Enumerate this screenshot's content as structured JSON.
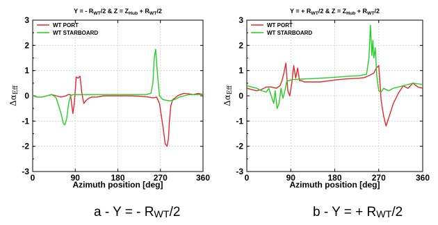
{
  "chart_data": [
    {
      "type": "line",
      "title_parts": [
        "Y = - R",
        "WT",
        "/2 & Z = Z",
        "Hub",
        " + R",
        "WT",
        "/2"
      ],
      "caption_parts": [
        "a - Y = - R",
        "WT",
        "/2"
      ],
      "xlabel": "Azimuth position [deg]",
      "ylabel_parts": [
        "Δα",
        "Eff"
      ],
      "xlim": [
        0,
        360
      ],
      "ylim": [
        -3,
        3
      ],
      "xticks": [
        0,
        90,
        180,
        270,
        360
      ],
      "yticks": [
        -3,
        -2,
        -1,
        0,
        1,
        2,
        3
      ],
      "grid": true,
      "legend_position": "top-left",
      "series": [
        {
          "name": "WT PORT",
          "color": "#e8262a",
          "x": [
            0,
            10,
            20,
            30,
            40,
            50,
            60,
            70,
            75,
            80,
            85,
            88,
            92,
            96,
            100,
            104,
            108,
            112,
            118,
            125,
            135,
            150,
            170,
            190,
            210,
            230,
            245,
            255,
            262,
            268,
            272,
            276,
            280,
            284,
            287,
            289,
            292,
            296,
            300,
            306,
            312,
            320,
            330,
            340,
            350,
            360
          ],
          "y": [
            0.02,
            -0.05,
            -0.05,
            0.0,
            0.05,
            0.0,
            -0.05,
            0.0,
            0.05,
            0.05,
            -0.7,
            -0.3,
            0.75,
            0.7,
            0.78,
            0.1,
            -0.3,
            -0.2,
            -0.1,
            -0.05,
            -0.05,
            0.0,
            0.0,
            0.0,
            0.0,
            -0.02,
            -0.05,
            -0.08,
            -0.05,
            -0.3,
            -0.8,
            -1.3,
            -1.9,
            -2.0,
            -1.7,
            -1.0,
            -0.4,
            -0.15,
            -0.1,
            0.0,
            0.05,
            0.1,
            0.08,
            0.05,
            0.1,
            0.05
          ]
        },
        {
          "name": "WT STARBOARD",
          "color": "#22d022",
          "x": [
            0,
            10,
            20,
            30,
            40,
            45,
            50,
            55,
            60,
            65,
            68,
            72,
            76,
            80,
            85,
            90,
            100,
            120,
            150,
            180,
            210,
            240,
            250,
            254,
            257,
            260,
            264,
            268,
            275,
            290,
            300,
            310,
            320,
            330,
            340,
            350,
            360
          ],
          "y": [
            0.0,
            -0.05,
            -0.05,
            0.0,
            0.05,
            0.0,
            -0.1,
            -0.4,
            -0.7,
            -1.1,
            -1.15,
            -0.9,
            -0.3,
            0.0,
            0.05,
            0.05,
            0.05,
            0.05,
            0.05,
            0.05,
            0.05,
            0.05,
            0.1,
            0.5,
            1.5,
            1.85,
            0.8,
            0.0,
            -0.15,
            -0.2,
            -0.15,
            -0.05,
            0.0,
            0.05,
            0.05,
            0.05,
            0.05
          ]
        }
      ]
    },
    {
      "type": "line",
      "title_parts": [
        "Y = + R",
        "WT",
        "/2 & Z = Z",
        "Hub",
        " + R",
        "WT",
        "/2"
      ],
      "caption_parts": [
        "b - Y = + R",
        "WT",
        "/2"
      ],
      "xlabel": "Azimuth position [deg]",
      "ylabel_parts": [
        "Δα",
        "Eff"
      ],
      "xlim": [
        0,
        360
      ],
      "ylim": [
        -3,
        3
      ],
      "xticks": [
        0,
        90,
        180,
        270,
        360
      ],
      "yticks": [
        -3,
        -2,
        -1,
        0,
        1,
        2,
        3
      ],
      "grid": true,
      "legend_position": "top-left",
      "series": [
        {
          "name": "WT PORT",
          "color": "#e8262a",
          "x": [
            0,
            10,
            20,
            30,
            40,
            50,
            60,
            68,
            72,
            76,
            80,
            84,
            88,
            92,
            96,
            100,
            104,
            108,
            112,
            118,
            130,
            150,
            170,
            190,
            210,
            230,
            240,
            250,
            260,
            265,
            270,
            275,
            280,
            285,
            290,
            300,
            310,
            320,
            330,
            340,
            350,
            360
          ],
          "y": [
            0.3,
            0.25,
            0.2,
            0.25,
            0.35,
            0.35,
            0.3,
            0.4,
            0.6,
            0.9,
            1.3,
            0.2,
            0.0,
            0.5,
            1.2,
            0.7,
            1.1,
            0.6,
            0.6,
            0.55,
            0.55,
            0.55,
            0.6,
            0.65,
            0.68,
            0.7,
            0.72,
            0.8,
            0.9,
            1.1,
            1.2,
            -0.2,
            -0.8,
            -1.2,
            -0.9,
            -0.3,
            0.1,
            0.4,
            0.3,
            0.5,
            0.35,
            0.3
          ]
        },
        {
          "name": "WT STARBOARD",
          "color": "#22d022",
          "x": [
            0,
            10,
            20,
            30,
            40,
            45,
            50,
            55,
            58,
            62,
            66,
            70,
            74,
            78,
            82,
            86,
            90,
            95,
            100,
            110,
            130,
            150,
            170,
            190,
            210,
            230,
            245,
            250,
            253,
            256,
            258,
            260,
            263,
            266,
            270,
            275,
            280,
            290,
            300,
            320,
            340,
            360
          ],
          "y": [
            0.4,
            0.35,
            0.3,
            0.2,
            0.15,
            0.3,
            0.0,
            -0.3,
            0.2,
            -0.5,
            -0.3,
            0.3,
            -0.1,
            0.2,
            0.6,
            0.6,
            0.62,
            0.65,
            0.65,
            0.66,
            0.68,
            0.7,
            0.72,
            0.75,
            0.78,
            0.8,
            0.85,
            1.5,
            2.8,
            1.6,
            2.2,
            1.5,
            1.9,
            0.8,
            0.2,
            0.15,
            0.3,
            0.2,
            0.3,
            0.4,
            0.5,
            0.45
          ]
        }
      ]
    }
  ]
}
